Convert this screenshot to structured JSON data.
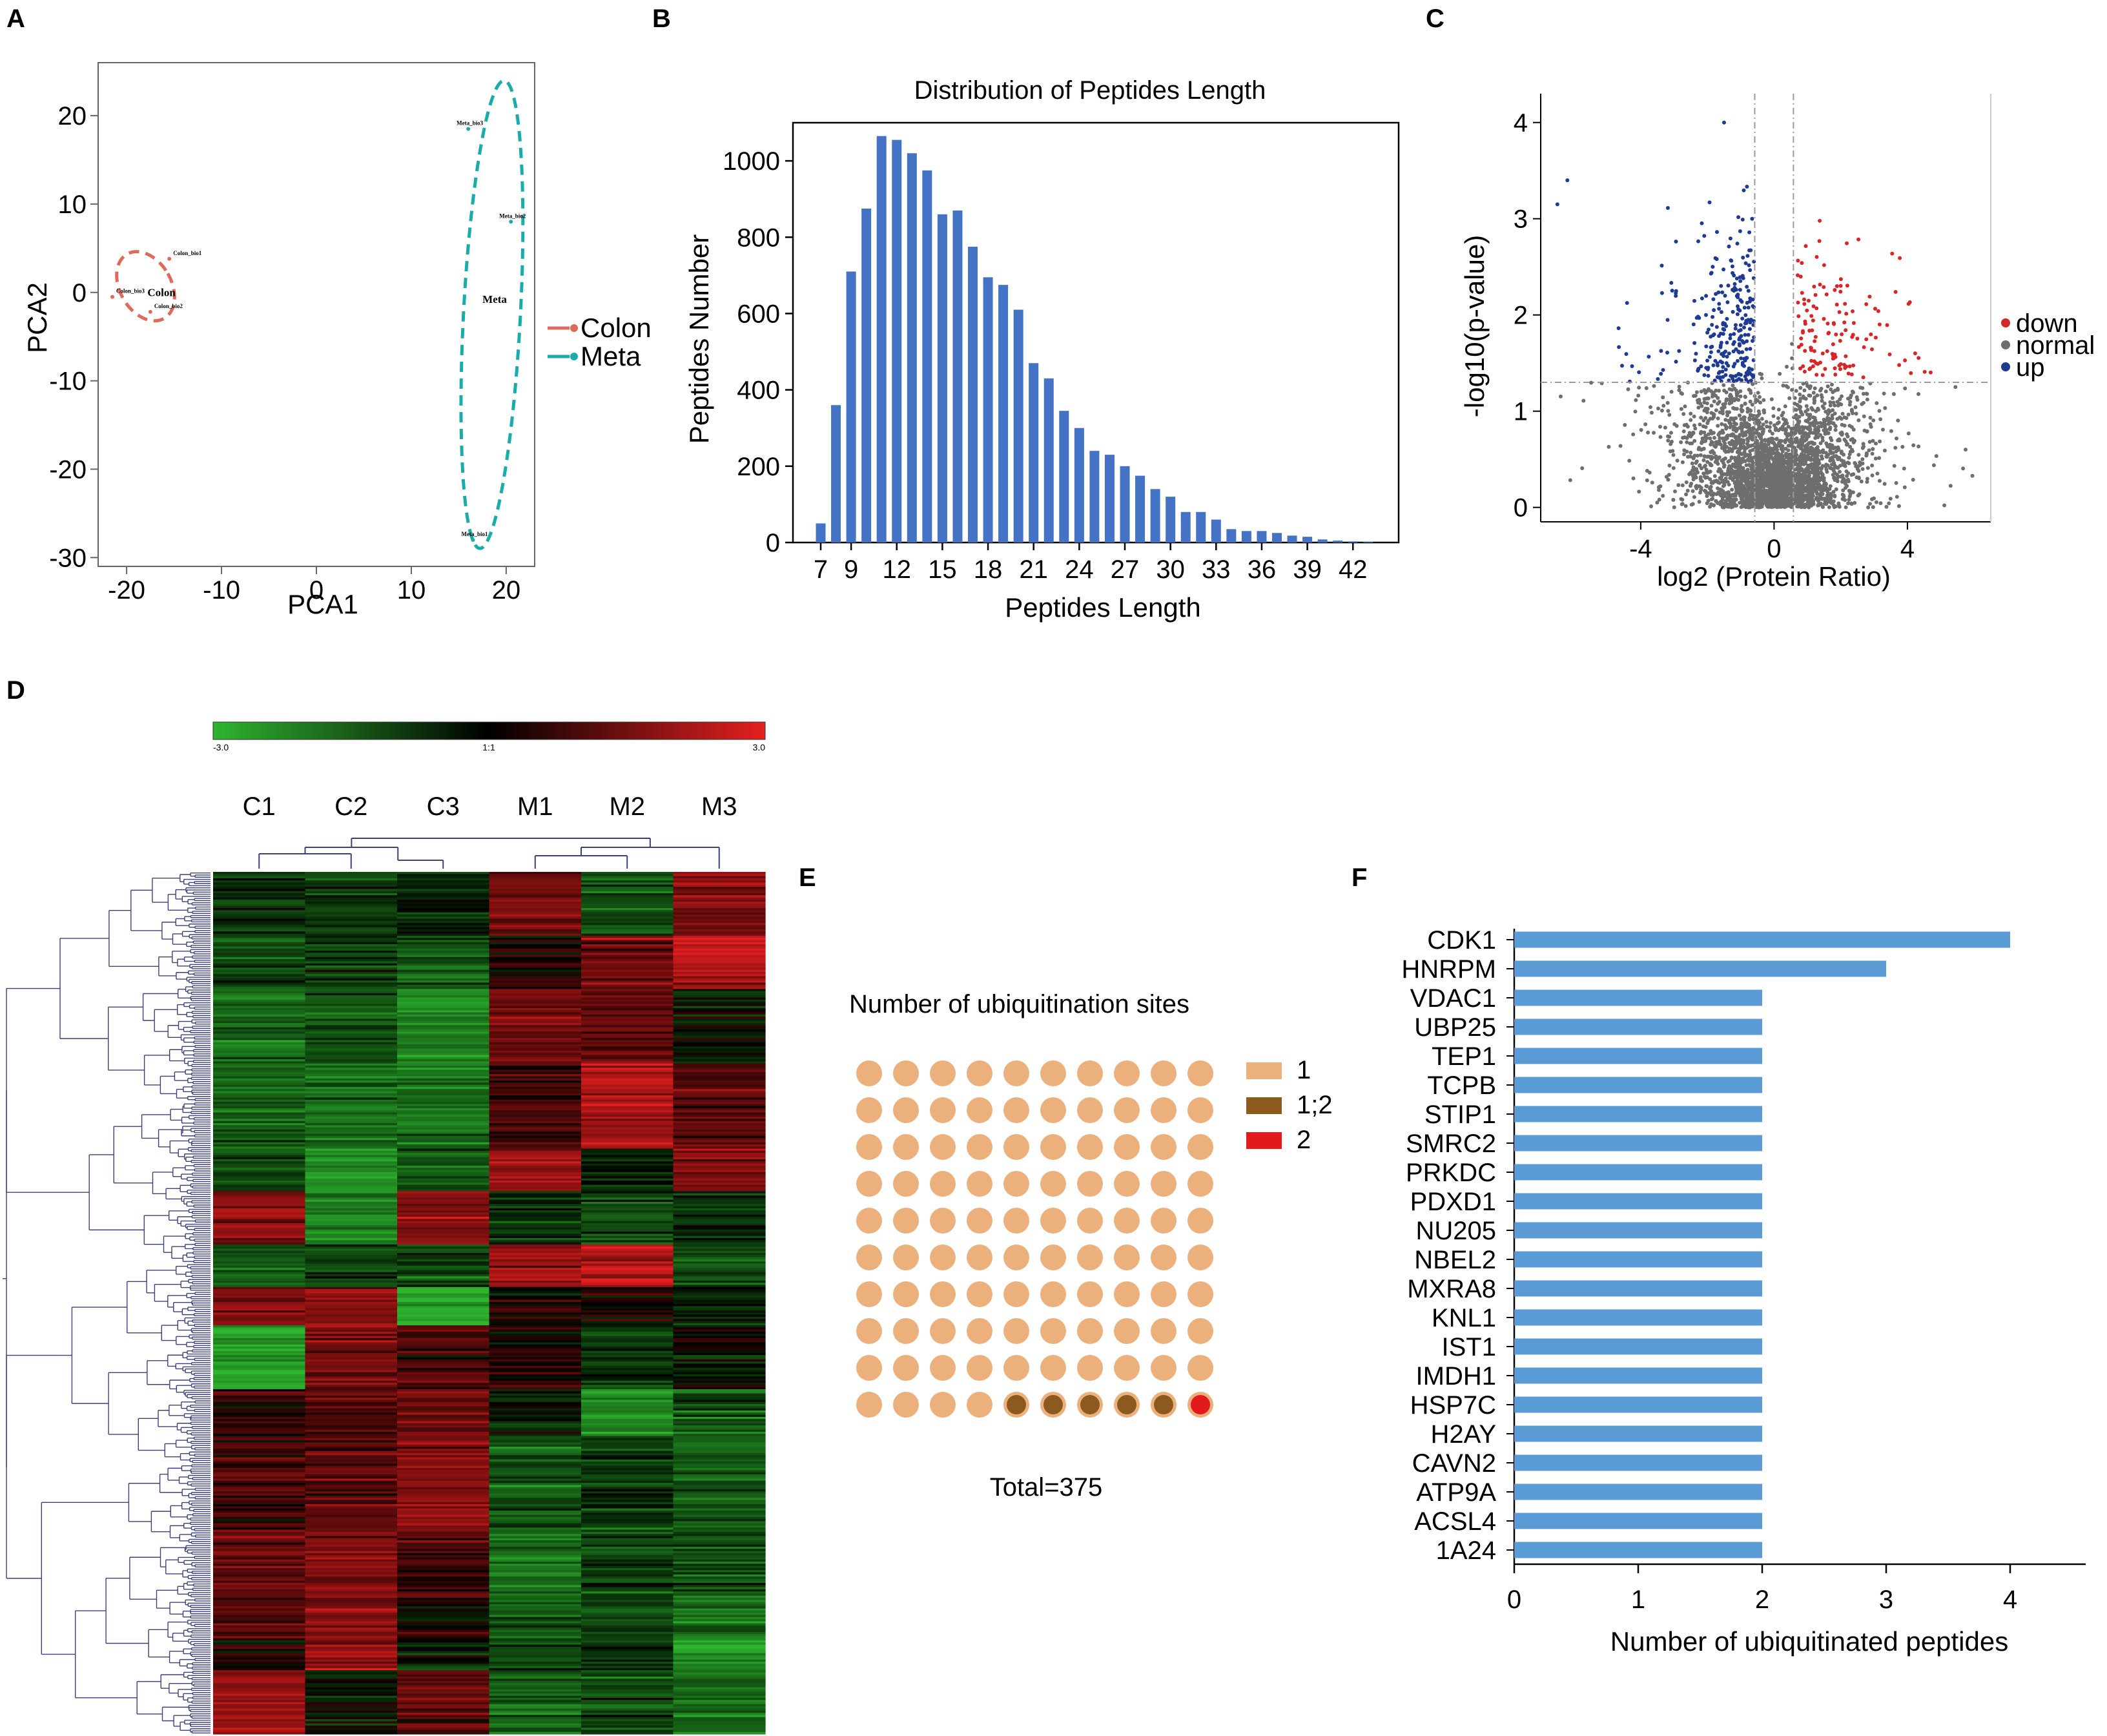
{
  "panels": {
    "A": {
      "letter": "A",
      "chart_data": {
        "type": "scatter",
        "xlabel": "PCA1",
        "ylabel": "PCA2",
        "xlim": [
          -23,
          23
        ],
        "ylim": [
          -31,
          26
        ],
        "xticks": [
          "-20",
          "-10",
          "0",
          "10",
          "20"
        ],
        "yticks": [
          "20",
          "10",
          "0",
          "-10",
          "-20",
          "-30"
        ],
        "groups": [
          {
            "name": "Colon",
            "color": "#E06A5A",
            "label": "Colon",
            "points": [
              {
                "x": -15.5,
                "y": 3.8,
                "label": "Colon_bio1"
              },
              {
                "x": -17.5,
                "y": -2.2,
                "label": "Colon_bio2"
              },
              {
                "x": -21.5,
                "y": -0.5,
                "label": "Colon_bio3"
              }
            ]
          },
          {
            "name": "Meta",
            "color": "#1AABAB",
            "label": "Meta",
            "points": [
              {
                "x": 16,
                "y": 18.5,
                "label": "Meta_bio3"
              },
              {
                "x": 20.5,
                "y": 8,
                "label": "Meta_bio2"
              },
              {
                "x": 16.5,
                "y": -28,
                "label": "Meta_bio1"
              }
            ]
          }
        ],
        "legend": [
          "Colon",
          "Meta"
        ]
      }
    },
    "B": {
      "letter": "B",
      "chart_data": {
        "type": "bar",
        "title": "Distribution of Peptides Length",
        "xlabel": "Peptides Length",
        "ylabel": "Peptides Number",
        "ylim": [
          0,
          1100
        ],
        "yticks": [
          "0",
          "200",
          "400",
          "600",
          "800",
          "1000"
        ],
        "xtick_labels": [
          "7",
          "9",
          "12",
          "15",
          "18",
          "21",
          "24",
          "27",
          "30",
          "33",
          "36",
          "39",
          "42"
        ],
        "categories": [
          7,
          8,
          9,
          10,
          11,
          12,
          13,
          14,
          15,
          16,
          17,
          18,
          19,
          20,
          21,
          22,
          23,
          24,
          25,
          26,
          27,
          28,
          29,
          30,
          31,
          32,
          33,
          34,
          35,
          36,
          37,
          38,
          39,
          40,
          41,
          42,
          43
        ],
        "values": [
          50,
          360,
          710,
          875,
          1065,
          1055,
          1020,
          975,
          860,
          870,
          775,
          695,
          675,
          610,
          470,
          430,
          345,
          300,
          240,
          230,
          200,
          175,
          140,
          120,
          80,
          80,
          60,
          35,
          30,
          30,
          25,
          18,
          15,
          8,
          5,
          3,
          2
        ],
        "color": "#4472C4"
      }
    },
    "C": {
      "letter": "C",
      "chart_data": {
        "type": "scatter",
        "xlabel": "log2 (Protein Ratio)",
        "ylabel": "-log10(p-value)",
        "xlim": [
          -7,
          6.5
        ],
        "ylim": [
          -0.15,
          4.3
        ],
        "xticks": [
          "-4",
          "0",
          "4"
        ],
        "yticks": [
          "0",
          "1",
          "2",
          "3",
          "4"
        ],
        "thresholds": {
          "x": [
            -0.58,
            0.58
          ],
          "y": 1.3
        },
        "legend": [
          {
            "label": "down",
            "color": "#D62728"
          },
          {
            "label": "normal",
            "color": "#6E6E6E"
          },
          {
            "label": "up",
            "color": "#1F3A93"
          }
        ],
        "n_points": {
          "normal": 3000,
          "down": 130,
          "up": 260
        }
      }
    },
    "D": {
      "letter": "D",
      "chart_data": {
        "type": "heatmap",
        "scale": {
          "min_label": "-3.0",
          "mid_label": "1:1",
          "max_label": "3.0",
          "colors": [
            "#2FB52F",
            "#000000",
            "#E51F1F"
          ]
        },
        "columns": [
          "C1",
          "C2",
          "C3",
          "M1",
          "M2",
          "M3"
        ],
        "n_rows": 375
      }
    },
    "E": {
      "letter": "E",
      "chart_data": {
        "type": "waffle",
        "title": "Number of ubiquitination sites",
        "total_label": "Total=375",
        "categories": [
          {
            "label": "1",
            "color": "#EBB07C",
            "units": 94
          },
          {
            "label": "1;2",
            "color": "#8C5A1E",
            "units": 5
          },
          {
            "label": "2",
            "color": "#E31A1C",
            "units": 1
          }
        ]
      }
    },
    "F": {
      "letter": "F",
      "chart_data": {
        "type": "bar",
        "orientation": "horizontal",
        "xlabel": "Number of ubiquitinated peptides",
        "xlim": [
          0,
          4.6
        ],
        "xticks": [
          "0",
          "1",
          "2",
          "3",
          "4"
        ],
        "categories": [
          "CDK1",
          "HNRPM",
          "VDAC1",
          "UBP25",
          "TEP1",
          "TCPB",
          "STIP1",
          "SMRC2",
          "PRKDC",
          "PDXD1",
          "NU205",
          "NBEL2",
          "MXRA8",
          "KNL1",
          "IST1",
          "IMDH1",
          "HSP7C",
          "H2AY",
          "CAVN2",
          "ATP9A",
          "ACSL4",
          "1A24"
        ],
        "values": [
          4,
          3,
          2,
          2,
          2,
          2,
          2,
          2,
          2,
          2,
          2,
          2,
          2,
          2,
          2,
          2,
          2,
          2,
          2,
          2,
          2,
          2
        ],
        "color": "#5B9BD5"
      }
    }
  }
}
